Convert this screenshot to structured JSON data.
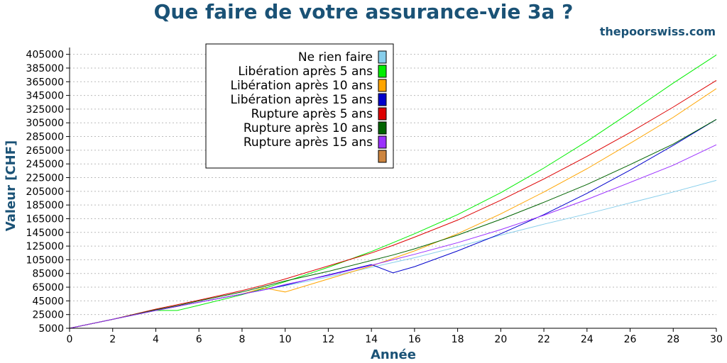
{
  "colors": {
    "title": "#1a5276",
    "text": "#000000",
    "grid": "#bbbbbb"
  },
  "header": {
    "title": "Que faire de votre assurance-vie 3a ?",
    "brand": "thepoorswiss.com"
  },
  "chart_data": {
    "type": "line",
    "title": "Que faire de votre assurance-vie 3a ?",
    "xlabel": "Année",
    "ylabel": "Valeur [CHF]",
    "xlim": [
      0,
      30
    ],
    "ylim": [
      5000,
      415000
    ],
    "grid": "horizontal dotted",
    "legend_position": "top-left",
    "x_ticks": [
      0,
      2,
      4,
      6,
      8,
      10,
      12,
      14,
      16,
      18,
      20,
      22,
      24,
      26,
      28,
      30
    ],
    "y_ticks": [
      5000,
      25000,
      45000,
      65000,
      85000,
      105000,
      125000,
      145000,
      165000,
      185000,
      205000,
      225000,
      245000,
      265000,
      285000,
      305000,
      325000,
      345000,
      365000,
      385000,
      405000
    ],
    "x": [
      0,
      2,
      4,
      5,
      6,
      8,
      9,
      10,
      12,
      14,
      15,
      16,
      18,
      20,
      22,
      24,
      26,
      28,
      30
    ],
    "series": [
      {
        "name": "Ne rien faire",
        "color": "#87ceeb",
        "values": [
          5000,
          18000,
          31000,
          37000,
          43000,
          55000,
          61000,
          67000,
          80000,
          94000,
          101000,
          108000,
          124000,
          141000,
          157000,
          172000,
          188000,
          204000,
          221000
        ]
      },
      {
        "name": "Libération après 5 ans",
        "color": "#00ee00",
        "values": [
          5000,
          18000,
          31000,
          31000,
          38500,
          54000,
          63000,
          73000,
          94000,
          117000,
          130000,
          143000,
          171000,
          203000,
          239000,
          278000,
          320000,
          363000,
          404000
        ]
      },
      {
        "name": "Libération après 10 ans",
        "color": "#ffa500",
        "values": [
          5000,
          18000,
          31000,
          37000,
          43000,
          55000,
          64000,
          58000,
          77000,
          96000,
          107000,
          118000,
          143000,
          172000,
          204000,
          238000,
          275000,
          313000,
          355000
        ]
      },
      {
        "name": "Libération après 15 ans",
        "color": "#0000cc",
        "values": [
          5000,
          18000,
          31000,
          37000,
          43000,
          55000,
          61000,
          68000,
          83000,
          98000,
          86000,
          95000,
          118000,
          143000,
          171000,
          202000,
          236000,
          272000,
          310000
        ]
      },
      {
        "name": "Rupture après 5 ans",
        "color": "#dd0000",
        "values": [
          5000,
          18000,
          33000,
          39500,
          46000,
          60000,
          68000,
          77000,
          96000,
          115000,
          126000,
          138000,
          163000,
          192000,
          223000,
          256000,
          291000,
          328000,
          367000
        ]
      },
      {
        "name": "Rupture après 10 ans",
        "color": "#006400",
        "values": [
          5000,
          18000,
          32000,
          38000,
          45000,
          58000,
          66000,
          74000,
          88000,
          104000,
          112000,
          121000,
          141000,
          164000,
          189000,
          215000,
          244000,
          274000,
          310000
        ]
      },
      {
        "name": "Rupture après 15 ans",
        "color": "#9b30ff",
        "values": [
          5000,
          18000,
          31000,
          37000,
          43000,
          55000,
          61000,
          69000,
          82000,
          97000,
          105000,
          113000,
          130000,
          149000,
          170000,
          193000,
          218000,
          243000,
          273000
        ]
      }
    ],
    "extra_legend_swatch": {
      "color": "#cd853f"
    }
  }
}
